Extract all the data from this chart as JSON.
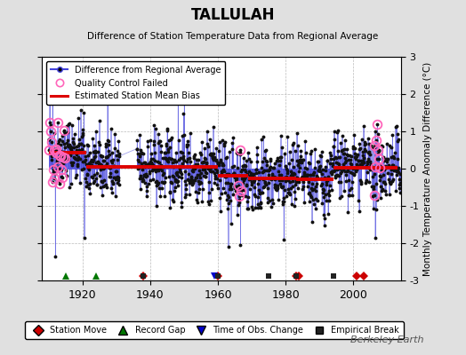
{
  "title": "TALLULAH",
  "subtitle": "Difference of Station Temperature Data from Regional Average",
  "ylabel": "Monthly Temperature Anomaly Difference (°C)",
  "xlabel_years": [
    1920,
    1940,
    1960,
    1980,
    2000
  ],
  "ylim": [
    -3,
    3
  ],
  "xlim": [
    1908,
    2014
  ],
  "background_color": "#e0e0e0",
  "plot_background": "#ffffff",
  "grid_color": "#bbbbbb",
  "seed": 42,
  "year_start": 1910,
  "year_end": 2013,
  "bias_segments": [
    {
      "x_start": 1910,
      "x_end": 1921,
      "bias": 0.42
    },
    {
      "x_start": 1921,
      "x_end": 1960,
      "bias": 0.04
    },
    {
      "x_start": 1960,
      "x_end": 1969,
      "bias": -0.18
    },
    {
      "x_start": 1969,
      "x_end": 1983,
      "bias": -0.26
    },
    {
      "x_start": 1983,
      "x_end": 1994,
      "bias": -0.28
    },
    {
      "x_start": 1994,
      "x_end": 2013,
      "bias": 0.02
    }
  ],
  "station_moves": [
    1938,
    1960,
    1983,
    1984,
    2001,
    2003
  ],
  "record_gaps": [
    1915,
    1924
  ],
  "obs_changes": [
    1959
  ],
  "empirical_breaks": [
    1938,
    1960,
    1975,
    1983,
    1994
  ],
  "qc_failed_years": [
    1910,
    1911,
    1912,
    1913,
    1914,
    1966,
    2006,
    2007
  ],
  "line_color": "#4444dd",
  "dot_color": "#111111",
  "bias_color": "#dd0000",
  "qc_color": "#ff66bb",
  "station_move_color": "#cc0000",
  "record_gap_color": "#007700",
  "obs_change_color": "#0000cc",
  "empirical_break_color": "#222222",
  "watermark": "Berkeley Earth"
}
